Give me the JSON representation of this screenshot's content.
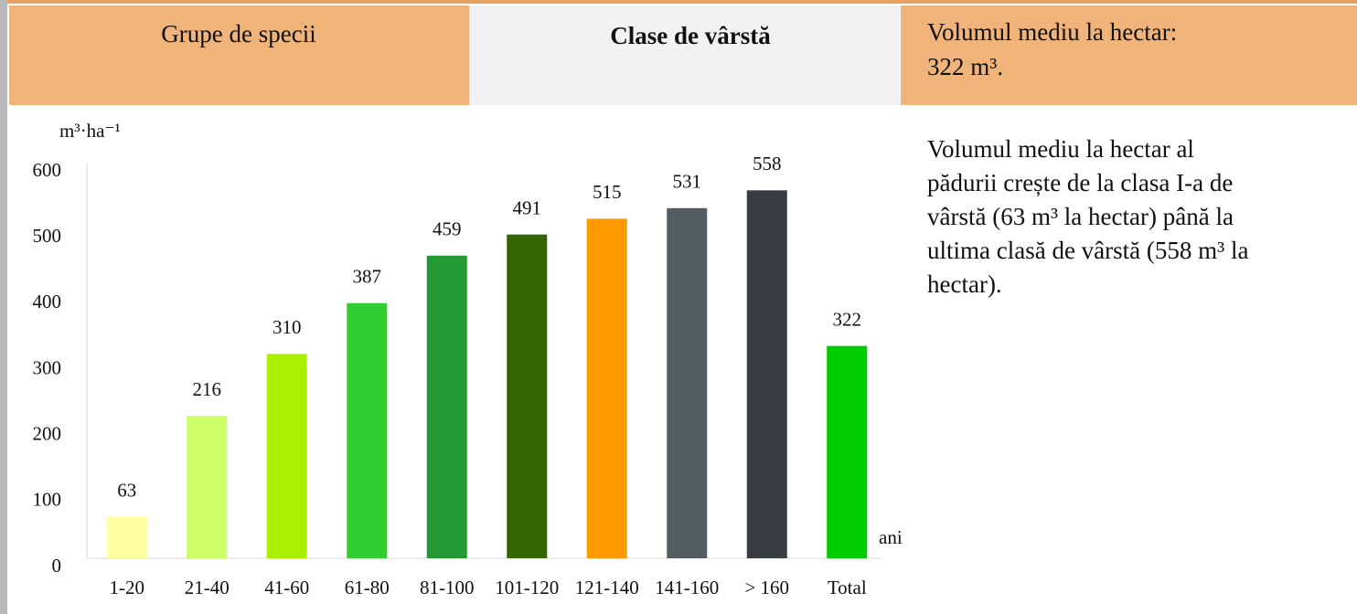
{
  "header": {
    "col1": "Grupe de specii",
    "col2": "Clase de vârstă",
    "col3_line1": "Volumul mediu la hectar:",
    "col3_line2": "322 m³."
  },
  "text": {
    "lines": [
      "Volumul mediu la hectar al",
      "pădurii crește de la clasa I-a de",
      "vârstă (63 m³ la hectar) până la",
      "ultima clasă de vârstă (558 m³ la",
      "hectar)."
    ]
  },
  "chart_data": {
    "type": "bar",
    "ylabel": "m³·ha⁻¹",
    "xlabel": "ani",
    "categories": [
      "1-20",
      "21-40",
      "41-60",
      "61-80",
      "81-100",
      "101-120",
      "121-140",
      "141-160",
      "> 160",
      "Total"
    ],
    "values": [
      63,
      216,
      310,
      387,
      459,
      491,
      515,
      531,
      558,
      322
    ],
    "colors": [
      "#ffffa0",
      "#ccff66",
      "#aaee00",
      "#33cc33",
      "#229933",
      "#336600",
      "#ff9900",
      "#555d60",
      "#383e40",
      "#00cc00"
    ],
    "ylim": [
      0,
      600
    ],
    "yticks": [
      0,
      100,
      200,
      300,
      400,
      500,
      600
    ],
    "grid": false
  }
}
